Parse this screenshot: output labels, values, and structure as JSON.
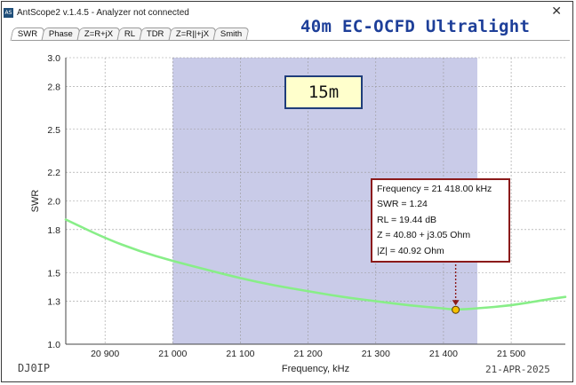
{
  "window": {
    "app_icon_text": "AS",
    "title": "AntScope2 v.1.4.5 - Analyzer not connected",
    "close_glyph": "✕",
    "overlay_title": "40m EC-OCFD Ultralight"
  },
  "tabs": [
    {
      "label": "SWR",
      "active": true
    },
    {
      "label": "Phase",
      "active": false
    },
    {
      "label": "Z=R+jX",
      "active": false
    },
    {
      "label": "RL",
      "active": false
    },
    {
      "label": "TDR",
      "active": false
    },
    {
      "label": "Z=R||+jX",
      "active": false
    },
    {
      "label": "Smith",
      "active": false
    }
  ],
  "band_label": "15m",
  "tooltip": {
    "lines": [
      "Frequency = 21 418.00 kHz",
      "SWR = 1.24",
      "RL = 19.44 dB",
      "Z = 40.80 + j3.05 Ohm",
      "|Z| = 40.92 Ohm"
    ]
  },
  "footer": {
    "callsign": "DJ0IP",
    "date": "21-APR-2025"
  },
  "colors": {
    "band_fill": "#c9cbe8",
    "curve": "#88ee88",
    "marker": "#f5c000",
    "tooltip_border": "#8b1a1a",
    "title": "#1e3f99"
  },
  "chart_data": {
    "type": "line",
    "title": "",
    "xlabel": "Frequency, kHz",
    "ylabel": "SWR",
    "xlim": [
      20842,
      21580
    ],
    "ylim": [
      1.0,
      3.0
    ],
    "x_ticks": [
      20900,
      21000,
      21100,
      21200,
      21300,
      21400,
      21500
    ],
    "x_tick_labels": [
      "20 900",
      "21 000",
      "21 100",
      "21 200",
      "21 300",
      "21 400",
      "21 500"
    ],
    "y_ticks": [
      1.0,
      1.3,
      1.5,
      1.8,
      2.0,
      2.2,
      2.5,
      2.8,
      3.0
    ],
    "y_tick_labels": [
      "1.0",
      "1.3",
      "1.5",
      "1.8",
      "2.0",
      "2.2",
      "2.5",
      "2.8",
      "3.0"
    ],
    "grid": true,
    "band_shade": {
      "from": 21000,
      "to": 21450
    },
    "series": [
      {
        "x": [
          20842,
          20900,
          20950,
          21000,
          21050,
          21100,
          21150,
          21200,
          21250,
          21300,
          21350,
          21400,
          21418,
          21450,
          21500,
          21550,
          21580
        ],
        "y": [
          1.87,
          1.74,
          1.65,
          1.58,
          1.52,
          1.46,
          1.41,
          1.37,
          1.33,
          1.3,
          1.27,
          1.25,
          1.24,
          1.25,
          1.27,
          1.31,
          1.33
        ]
      }
    ],
    "marker": {
      "x": 21418,
      "y": 1.24
    }
  }
}
